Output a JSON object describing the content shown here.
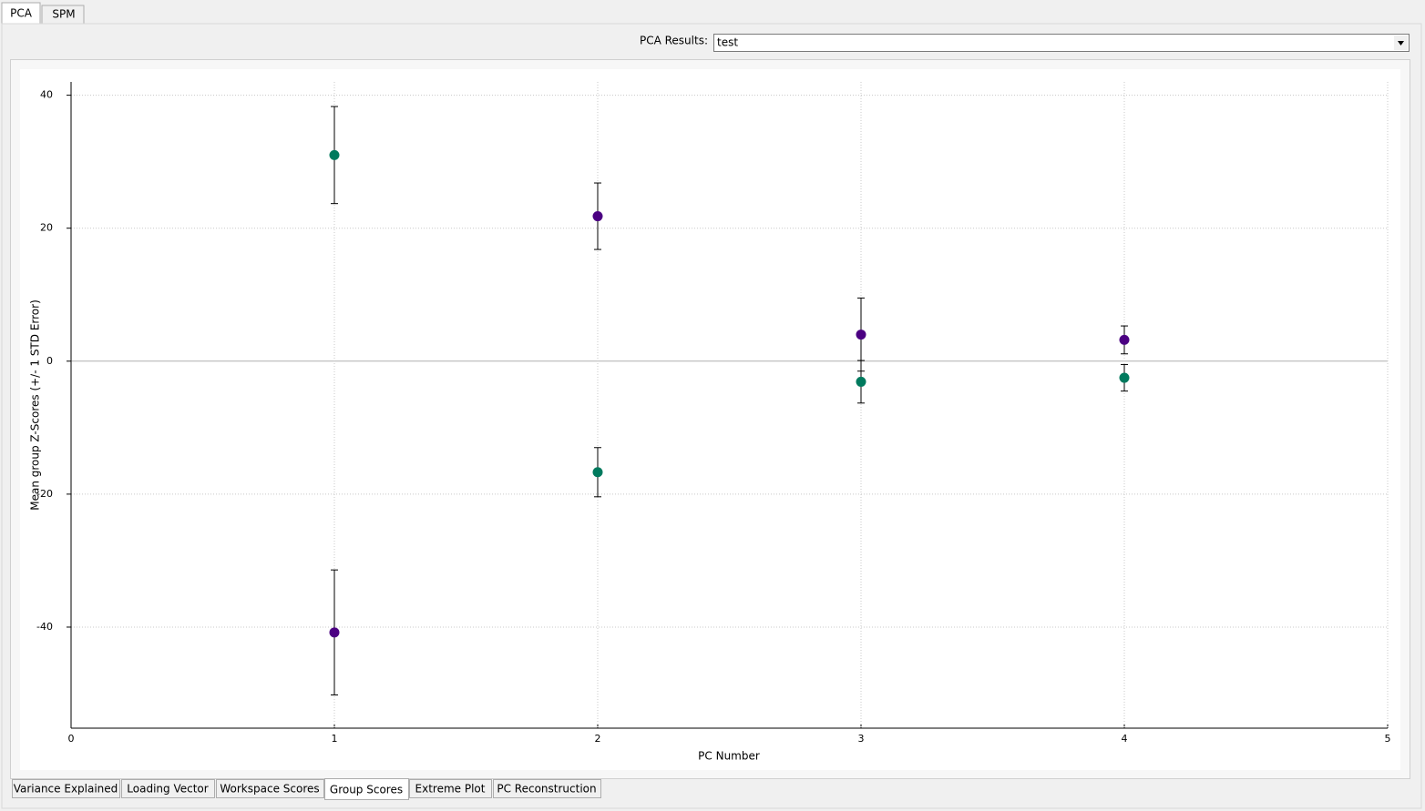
{
  "top_tabs": [
    "PCA",
    "SPM"
  ],
  "results_label": "PCA Results:",
  "results_value": "test",
  "bottom_tabs": [
    "Variance Explained",
    "Loading Vector",
    "Workspace Scores",
    "Group Scores",
    "Extreme Plot",
    "PC Reconstruction"
  ],
  "chart_data": {
    "type": "scatter",
    "x_label": "PC Number",
    "y_label": "Mean group Z-Scores (+/- 1 STD Error)",
    "xlim": [
      0,
      5
    ],
    "ylim": [
      -55.2,
      42
    ],
    "xticks": [
      0,
      1,
      2,
      3,
      4,
      5
    ],
    "yticks": [
      -40,
      -20,
      0,
      20,
      40
    ],
    "grid": true,
    "series": [
      {
        "color": "#007a5e",
        "x": [
          1,
          2,
          3,
          4
        ],
        "values": [
          31.0,
          -16.7,
          -3.1,
          -2.5
        ],
        "errors": [
          7.3,
          3.7,
          3.2,
          2.0
        ]
      },
      {
        "color": "#4b0082",
        "x": [
          1,
          2,
          3,
          4
        ],
        "values": [
          -40.8,
          21.8,
          4.0,
          3.2
        ],
        "errors": [
          9.4,
          5.0,
          5.5,
          2.1
        ]
      }
    ]
  }
}
